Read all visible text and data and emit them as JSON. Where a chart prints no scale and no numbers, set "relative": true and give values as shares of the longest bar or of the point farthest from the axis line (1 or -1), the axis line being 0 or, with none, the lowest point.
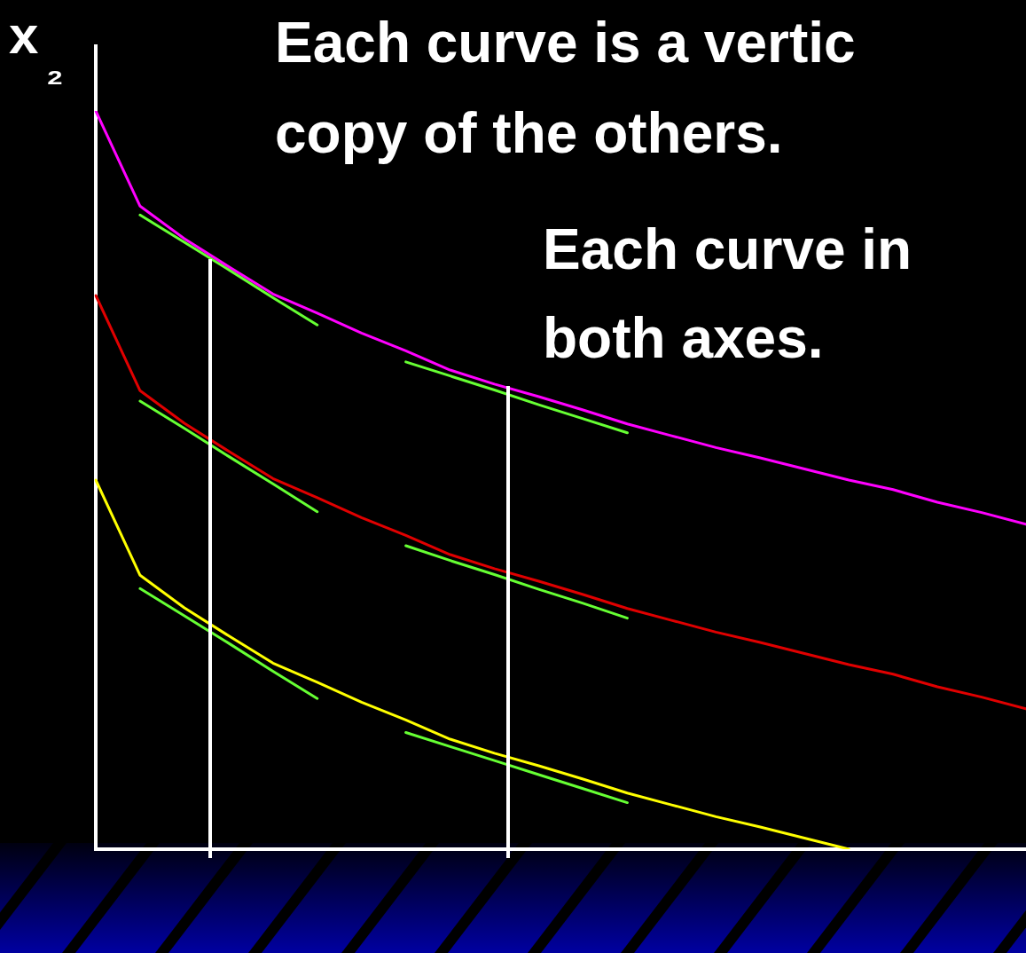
{
  "chart_data": {
    "type": "line",
    "relative": true,
    "ylabel": "x₂",
    "tick_labels": false,
    "grid": false,
    "legend": false,
    "marker": "none",
    "line_style": "solid",
    "annotations": [
      "Each curve is a vertic",
      "copy of the others.",
      "Each curve in",
      "both axes."
    ],
    "categories": [
      null,
      null,
      null,
      null,
      null,
      null,
      null,
      null,
      null,
      null,
      null,
      null,
      null,
      null,
      null,
      null,
      null,
      null,
      null,
      null,
      null,
      null
    ],
    "series": [
      {
        "color": "#ff00ff",
        "values": [
          1.0,
          0.871,
          0.827,
          0.789,
          0.752,
          0.726,
          0.699,
          0.675,
          0.649,
          0.63,
          0.613,
          0.595,
          0.576,
          0.56,
          0.544,
          0.53,
          0.515,
          0.5,
          0.487,
          0.47,
          0.456,
          0.44
        ]
      },
      {
        "color": "#e00000",
        "values": [
          0.75,
          0.621,
          0.577,
          0.539,
          0.502,
          0.476,
          0.449,
          0.425,
          0.399,
          0.38,
          0.363,
          0.345,
          0.326,
          0.31,
          0.294,
          0.28,
          0.265,
          0.25,
          0.237,
          0.22,
          0.206,
          0.19
        ]
      },
      {
        "color": "#ffff00",
        "values": [
          0.5,
          0.371,
          0.327,
          0.289,
          0.252,
          0.226,
          0.199,
          0.175,
          0.149,
          0.13,
          0.113,
          0.095,
          0.076,
          0.06,
          0.044,
          0.03,
          0.015,
          0,
          null,
          null,
          null,
          null
        ]
      },
      {
        "color": "#66ff33",
        "values": [
          null,
          0.859,
          0.822,
          0.785,
          0.747,
          0.71,
          null,
          null,
          null,
          null,
          null,
          null,
          null,
          null,
          null,
          null,
          null,
          null,
          null,
          null,
          null,
          null
        ]
      },
      {
        "color": "#66ff33",
        "values": [
          null,
          null,
          null,
          null,
          null,
          null,
          null,
          0.66,
          0.641,
          0.622,
          0.602,
          0.583,
          0.564,
          null,
          null,
          null,
          null,
          null,
          null,
          null,
          null,
          null
        ]
      },
      {
        "color": "#66ff33",
        "values": [
          null,
          0.607,
          0.57,
          0.532,
          0.495,
          0.457,
          null,
          null,
          null,
          null,
          null,
          null,
          null,
          null,
          null,
          null,
          null,
          null,
          null,
          null,
          null,
          null
        ]
      },
      {
        "color": "#66ff33",
        "values": [
          null,
          null,
          null,
          null,
          null,
          null,
          null,
          0.411,
          0.391,
          0.372,
          0.352,
          0.333,
          0.313,
          null,
          null,
          null,
          null,
          null,
          null,
          null,
          null,
          null
        ]
      },
      {
        "color": "#66ff33",
        "values": [
          null,
          0.353,
          0.316,
          0.279,
          0.241,
          0.204,
          null,
          null,
          null,
          null,
          null,
          null,
          null,
          null,
          null,
          null,
          null,
          null,
          null,
          null,
          null,
          null
        ]
      },
      {
        "color": "#66ff33",
        "values": [
          null,
          null,
          null,
          null,
          null,
          null,
          null,
          0.158,
          0.139,
          0.12,
          0.101,
          0.082,
          0.063,
          null,
          null,
          null,
          null,
          null,
          null,
          null,
          null,
          null
        ]
      }
    ]
  }
}
